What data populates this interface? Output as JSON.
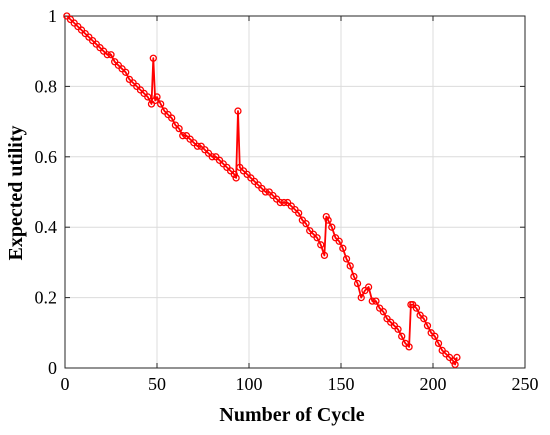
{
  "chart_data": {
    "type": "line",
    "title": "",
    "xlabel": "Number of Cycle",
    "ylabel": "Expected utility",
    "xlim": [
      0,
      250
    ],
    "ylim": [
      0,
      1
    ],
    "xticks": [
      0,
      50,
      100,
      150,
      200,
      250
    ],
    "yticks": [
      0,
      0.2,
      0.4,
      0.6,
      0.8,
      1
    ],
    "xtick_labels": [
      "0",
      "50",
      "100",
      "150",
      "200",
      "250"
    ],
    "ytick_labels": [
      "0",
      "0.2",
      "0.4",
      "0.6",
      "0.8",
      "1"
    ],
    "grid": true,
    "color": "#ff0000",
    "marker": "circle",
    "series": [
      {
        "x": [
          1,
          3,
          5,
          7,
          9,
          11,
          13,
          15,
          17,
          19,
          21,
          23,
          25,
          27,
          29,
          31,
          33,
          35,
          37,
          39,
          41,
          43,
          45,
          47,
          48,
          49,
          50,
          52,
          54,
          56,
          58,
          60,
          62,
          64,
          66,
          68,
          70,
          72,
          74,
          76,
          78,
          80,
          82,
          84,
          86,
          88,
          90,
          92,
          93,
          94,
          95,
          97,
          99,
          101,
          103,
          105,
          107,
          109,
          111,
          113,
          115,
          117,
          119,
          121,
          123,
          125,
          127,
          129,
          131,
          133,
          135,
          137,
          139,
          141,
          142,
          143,
          145,
          147,
          149,
          151,
          153,
          155,
          157,
          159,
          161,
          163,
          165,
          167,
          169,
          171,
          173,
          175,
          177,
          179,
          181,
          183,
          185,
          187,
          188,
          189,
          191,
          193,
          195,
          197,
          199,
          201,
          203,
          205,
          207,
          209,
          211,
          212,
          213
        ],
        "y": [
          1.0,
          0.99,
          0.98,
          0.97,
          0.96,
          0.95,
          0.94,
          0.93,
          0.92,
          0.91,
          0.9,
          0.89,
          0.89,
          0.87,
          0.86,
          0.85,
          0.84,
          0.82,
          0.81,
          0.8,
          0.79,
          0.78,
          0.77,
          0.75,
          0.88,
          0.76,
          0.77,
          0.75,
          0.73,
          0.72,
          0.71,
          0.69,
          0.68,
          0.66,
          0.66,
          0.65,
          0.64,
          0.63,
          0.63,
          0.62,
          0.61,
          0.6,
          0.6,
          0.59,
          0.58,
          0.57,
          0.56,
          0.55,
          0.54,
          0.73,
          0.57,
          0.56,
          0.55,
          0.54,
          0.53,
          0.52,
          0.51,
          0.5,
          0.5,
          0.49,
          0.48,
          0.47,
          0.47,
          0.47,
          0.46,
          0.45,
          0.44,
          0.42,
          0.41,
          0.39,
          0.38,
          0.37,
          0.35,
          0.32,
          0.43,
          0.42,
          0.4,
          0.37,
          0.36,
          0.34,
          0.31,
          0.29,
          0.26,
          0.24,
          0.2,
          0.22,
          0.23,
          0.19,
          0.19,
          0.17,
          0.16,
          0.14,
          0.13,
          0.12,
          0.11,
          0.09,
          0.07,
          0.06,
          0.18,
          0.18,
          0.17,
          0.15,
          0.14,
          0.12,
          0.1,
          0.09,
          0.07,
          0.05,
          0.04,
          0.03,
          0.02,
          0.01,
          0.03
        ]
      }
    ]
  }
}
